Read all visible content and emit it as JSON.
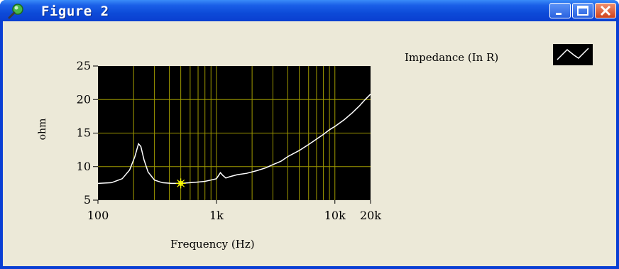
{
  "window": {
    "title": "Figure 2",
    "controls": [
      "minimize",
      "maximize",
      "close"
    ]
  },
  "legend": {
    "label": "Impedance (In R)"
  },
  "chart_data": {
    "type": "line",
    "xlabel": "Frequency (Hz)",
    "ylabel": "ohm",
    "x_scale": "log",
    "xlim": [
      100,
      20000
    ],
    "ylim": [
      5,
      25
    ],
    "x_ticks": [
      100,
      1000,
      10000,
      20000
    ],
    "x_tick_labels": [
      "100",
      "1k",
      "10k",
      "20k"
    ],
    "y_ticks": [
      5,
      10,
      15,
      20,
      25
    ],
    "y_tick_labels": [
      "5",
      "10",
      "15",
      "20",
      "25"
    ],
    "grid": true,
    "background": "#000000",
    "grid_color": "#a09a00",
    "line_color": "#ffffff",
    "cursor_color": "#ffff00",
    "series": [
      {
        "name": "Impedance (In R)",
        "x": [
          100,
          130,
          160,
          185,
          205,
          220,
          230,
          245,
          265,
          300,
          350,
          420,
          500,
          600,
          700,
          800,
          900,
          1000,
          1080,
          1130,
          1200,
          1300,
          1500,
          1800,
          2200,
          2600,
          3000,
          3500,
          4000,
          5000,
          6000,
          7000,
          8000,
          9000,
          10000,
          12000,
          14000,
          16000,
          18000,
          20000
        ],
        "y": [
          7.5,
          7.6,
          8.2,
          9.5,
          11.5,
          13.4,
          13.0,
          11.0,
          9.2,
          8.0,
          7.6,
          7.5,
          7.5,
          7.6,
          7.7,
          7.8,
          8.0,
          8.2,
          9.1,
          8.7,
          8.3,
          8.5,
          8.8,
          9.0,
          9.4,
          9.8,
          10.3,
          10.8,
          11.5,
          12.4,
          13.3,
          14.1,
          14.8,
          15.5,
          16.0,
          17.0,
          18.0,
          19.0,
          20.0,
          20.8
        ]
      }
    ],
    "cursor": {
      "x": 500,
      "y": 7.5
    }
  }
}
